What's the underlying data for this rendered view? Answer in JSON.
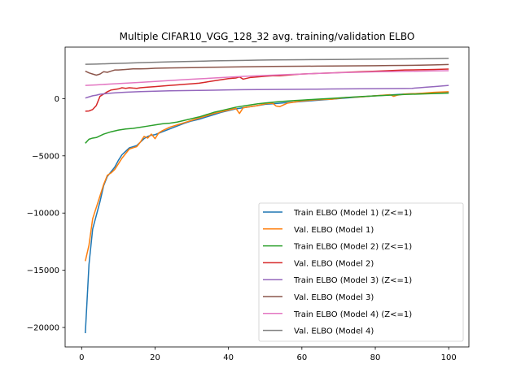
{
  "chart_data": {
    "type": "line",
    "title": "Multiple CIFAR10_VGG_128_32 avg. training/validation ELBO",
    "xlabel": "",
    "ylabel": "",
    "xlim": [
      -4.5,
      105.5
    ],
    "ylim": [
      -21700,
      4500
    ],
    "xticks": [
      0,
      20,
      40,
      60,
      80,
      100
    ],
    "yticks": [
      -20000,
      -15000,
      -10000,
      -5000,
      0
    ],
    "grid": false,
    "legend_position": "lower right",
    "series": [
      {
        "name": "Train ELBO (Model 1) (Z<=1)",
        "color": "#1f77b4",
        "points": [
          [
            1,
            -20500
          ],
          [
            2,
            -14500
          ],
          [
            3,
            -11400
          ],
          [
            4,
            -10200
          ],
          [
            5,
            -9000
          ],
          [
            6,
            -7600
          ],
          [
            7,
            -6800
          ],
          [
            8,
            -6400
          ],
          [
            9,
            -6000
          ],
          [
            10,
            -5400
          ],
          [
            11,
            -4900
          ],
          [
            12,
            -4600
          ],
          [
            13,
            -4300
          ],
          [
            14,
            -4200
          ],
          [
            15,
            -4100
          ],
          [
            16,
            -3800
          ],
          [
            17,
            -3500
          ],
          [
            18,
            -3300
          ],
          [
            19,
            -3200
          ],
          [
            20,
            -3150
          ],
          [
            22,
            -2900
          ],
          [
            24,
            -2650
          ],
          [
            26,
            -2400
          ],
          [
            28,
            -2150
          ],
          [
            30,
            -1950
          ],
          [
            32,
            -1800
          ],
          [
            34,
            -1600
          ],
          [
            36,
            -1400
          ],
          [
            38,
            -1200
          ],
          [
            40,
            -1050
          ],
          [
            42,
            -900
          ],
          [
            44,
            -800
          ],
          [
            46,
            -700
          ],
          [
            48,
            -600
          ],
          [
            50,
            -500
          ],
          [
            52,
            -450
          ],
          [
            54,
            -400
          ],
          [
            56,
            -350
          ],
          [
            58,
            -300
          ],
          [
            60,
            -250
          ],
          [
            64,
            -150
          ],
          [
            68,
            -50
          ],
          [
            72,
            50
          ],
          [
            76,
            150
          ],
          [
            80,
            250
          ],
          [
            84,
            320
          ],
          [
            88,
            400
          ],
          [
            92,
            450
          ],
          [
            96,
            500
          ],
          [
            100,
            550
          ]
        ]
      },
      {
        "name": "Val. ELBO (Model 1)",
        "color": "#ff7f0e",
        "points": [
          [
            1,
            -14200
          ],
          [
            2,
            -12800
          ],
          [
            3,
            -10500
          ],
          [
            4,
            -9500
          ],
          [
            5,
            -8500
          ],
          [
            6,
            -7500
          ],
          [
            7,
            -6700
          ],
          [
            8,
            -6500
          ],
          [
            9,
            -6200
          ],
          [
            10,
            -5700
          ],
          [
            11,
            -5200
          ],
          [
            12,
            -4800
          ],
          [
            13,
            -4400
          ],
          [
            14,
            -4300
          ],
          [
            15,
            -4200
          ],
          [
            16,
            -3800
          ],
          [
            17,
            -3300
          ],
          [
            18,
            -3450
          ],
          [
            19,
            -3100
          ],
          [
            20,
            -3500
          ],
          [
            21,
            -3000
          ],
          [
            22,
            -2800
          ],
          [
            24,
            -2500
          ],
          [
            26,
            -2300
          ],
          [
            28,
            -2100
          ],
          [
            30,
            -1900
          ],
          [
            32,
            -1700
          ],
          [
            34,
            -1500
          ],
          [
            36,
            -1300
          ],
          [
            38,
            -1150
          ],
          [
            40,
            -1000
          ],
          [
            42,
            -850
          ],
          [
            43,
            -1300
          ],
          [
            44,
            -800
          ],
          [
            46,
            -700
          ],
          [
            48,
            -600
          ],
          [
            50,
            -450
          ],
          [
            52,
            -400
          ],
          [
            53,
            -650
          ],
          [
            54,
            -700
          ],
          [
            56,
            -400
          ],
          [
            58,
            -300
          ],
          [
            60,
            -200
          ],
          [
            64,
            -100
          ],
          [
            68,
            -50
          ],
          [
            72,
            100
          ],
          [
            76,
            150
          ],
          [
            80,
            250
          ],
          [
            84,
            350
          ],
          [
            85,
            200
          ],
          [
            86,
            300
          ],
          [
            88,
            400
          ],
          [
            92,
            450
          ],
          [
            96,
            550
          ],
          [
            100,
            600
          ]
        ]
      },
      {
        "name": "Train ELBO (Model 2) (Z<=1)",
        "color": "#2ca02c",
        "points": [
          [
            1,
            -3900
          ],
          [
            2,
            -3550
          ],
          [
            3,
            -3450
          ],
          [
            4,
            -3400
          ],
          [
            5,
            -3250
          ],
          [
            6,
            -3100
          ],
          [
            8,
            -2900
          ],
          [
            10,
            -2750
          ],
          [
            12,
            -2650
          ],
          [
            14,
            -2600
          ],
          [
            16,
            -2500
          ],
          [
            18,
            -2400
          ],
          [
            20,
            -2300
          ],
          [
            22,
            -2200
          ],
          [
            24,
            -2150
          ],
          [
            26,
            -2050
          ],
          [
            28,
            -1900
          ],
          [
            30,
            -1750
          ],
          [
            32,
            -1600
          ],
          [
            34,
            -1400
          ],
          [
            36,
            -1200
          ],
          [
            38,
            -1050
          ],
          [
            40,
            -900
          ],
          [
            42,
            -750
          ],
          [
            44,
            -650
          ],
          [
            46,
            -550
          ],
          [
            48,
            -450
          ],
          [
            50,
            -380
          ],
          [
            52,
            -320
          ],
          [
            54,
            -260
          ],
          [
            56,
            -210
          ],
          [
            58,
            -170
          ],
          [
            60,
            -130
          ],
          [
            64,
            -50
          ],
          [
            68,
            20
          ],
          [
            72,
            100
          ],
          [
            76,
            180
          ],
          [
            80,
            240
          ],
          [
            84,
            300
          ],
          [
            88,
            360
          ],
          [
            92,
            400
          ],
          [
            96,
            440
          ],
          [
            100,
            480
          ]
        ]
      },
      {
        "name": "Val. ELBO (Model 2)",
        "color": "#d62728",
        "points": [
          [
            1,
            -1100
          ],
          [
            2,
            -1080
          ],
          [
            3,
            -950
          ],
          [
            4,
            -600
          ],
          [
            5,
            200
          ],
          [
            6,
            400
          ],
          [
            7,
            600
          ],
          [
            8,
            750
          ],
          [
            9,
            800
          ],
          [
            10,
            850
          ],
          [
            11,
            950
          ],
          [
            12,
            900
          ],
          [
            13,
            950
          ],
          [
            14,
            920
          ],
          [
            15,
            900
          ],
          [
            16,
            950
          ],
          [
            18,
            1000
          ],
          [
            20,
            1050
          ],
          [
            22,
            1100
          ],
          [
            24,
            1150
          ],
          [
            26,
            1200
          ],
          [
            28,
            1250
          ],
          [
            30,
            1300
          ],
          [
            32,
            1350
          ],
          [
            34,
            1450
          ],
          [
            36,
            1550
          ],
          [
            38,
            1650
          ],
          [
            40,
            1750
          ],
          [
            42,
            1800
          ],
          [
            43,
            1900
          ],
          [
            44,
            1700
          ],
          [
            46,
            1850
          ],
          [
            48,
            1900
          ],
          [
            50,
            1950
          ],
          [
            52,
            2000
          ],
          [
            54,
            2000
          ],
          [
            56,
            2050
          ],
          [
            58,
            2100
          ],
          [
            60,
            2150
          ],
          [
            64,
            2200
          ],
          [
            68,
            2250
          ],
          [
            72,
            2300
          ],
          [
            76,
            2350
          ],
          [
            80,
            2400
          ],
          [
            84,
            2450
          ],
          [
            88,
            2500
          ],
          [
            92,
            2520
          ],
          [
            96,
            2550
          ],
          [
            100,
            2580
          ]
        ]
      },
      {
        "name": "Train ELBO (Model 3) (Z<=1)",
        "color": "#9467bd",
        "points": [
          [
            1,
            50
          ],
          [
            2,
            150
          ],
          [
            3,
            250
          ],
          [
            4,
            300
          ],
          [
            5,
            380
          ],
          [
            6,
            420
          ],
          [
            8,
            480
          ],
          [
            10,
            520
          ],
          [
            12,
            560
          ],
          [
            14,
            590
          ],
          [
            16,
            610
          ],
          [
            18,
            630
          ],
          [
            20,
            650
          ],
          [
            24,
            680
          ],
          [
            28,
            700
          ],
          [
            32,
            720
          ],
          [
            36,
            740
          ],
          [
            40,
            760
          ],
          [
            44,
            780
          ],
          [
            48,
            790
          ],
          [
            52,
            800
          ],
          [
            56,
            810
          ],
          [
            60,
            820
          ],
          [
            64,
            830
          ],
          [
            68,
            840
          ],
          [
            72,
            850
          ],
          [
            76,
            860
          ],
          [
            80,
            870
          ],
          [
            84,
            880
          ],
          [
            88,
            890
          ],
          [
            90,
            900
          ],
          [
            92,
            950
          ],
          [
            94,
            1000
          ],
          [
            96,
            1050
          ],
          [
            98,
            1100
          ],
          [
            100,
            1150
          ]
        ]
      },
      {
        "name": "Val. ELBO (Model 3)",
        "color": "#8c564b",
        "points": [
          [
            1,
            2400
          ],
          [
            2,
            2250
          ],
          [
            3,
            2150
          ],
          [
            4,
            2050
          ],
          [
            5,
            2150
          ],
          [
            6,
            2350
          ],
          [
            7,
            2300
          ],
          [
            8,
            2400
          ],
          [
            9,
            2500
          ],
          [
            10,
            2500
          ],
          [
            12,
            2550
          ],
          [
            14,
            2600
          ],
          [
            16,
            2600
          ],
          [
            18,
            2620
          ],
          [
            20,
            2650
          ],
          [
            24,
            2680
          ],
          [
            28,
            2700
          ],
          [
            32,
            2720
          ],
          [
            36,
            2740
          ],
          [
            40,
            2760
          ],
          [
            44,
            2780
          ],
          [
            48,
            2800
          ],
          [
            52,
            2810
          ],
          [
            56,
            2820
          ],
          [
            60,
            2830
          ],
          [
            64,
            2840
          ],
          [
            68,
            2850
          ],
          [
            72,
            2860
          ],
          [
            76,
            2870
          ],
          [
            80,
            2880
          ],
          [
            84,
            2890
          ],
          [
            88,
            2900
          ],
          [
            92,
            2920
          ],
          [
            96,
            2950
          ],
          [
            100,
            2980
          ]
        ]
      },
      {
        "name": "Train ELBO (Model 4) (Z<=1)",
        "color": "#e377c2",
        "points": [
          [
            1,
            1150
          ],
          [
            4,
            1200
          ],
          [
            8,
            1280
          ],
          [
            12,
            1350
          ],
          [
            16,
            1420
          ],
          [
            20,
            1500
          ],
          [
            24,
            1580
          ],
          [
            28,
            1660
          ],
          [
            32,
            1730
          ],
          [
            36,
            1800
          ],
          [
            40,
            1870
          ],
          [
            44,
            1940
          ],
          [
            48,
            2000
          ],
          [
            52,
            2050
          ],
          [
            56,
            2100
          ],
          [
            60,
            2150
          ],
          [
            64,
            2200
          ],
          [
            68,
            2240
          ],
          [
            72,
            2280
          ],
          [
            76,
            2310
          ],
          [
            80,
            2340
          ],
          [
            84,
            2360
          ],
          [
            88,
            2380
          ],
          [
            92,
            2400
          ],
          [
            96,
            2420
          ],
          [
            100,
            2440
          ]
        ]
      },
      {
        "name": "Val. ELBO (Model 4)",
        "color": "#7f7f7f",
        "points": [
          [
            1,
            3000
          ],
          [
            4,
            3020
          ],
          [
            8,
            3060
          ],
          [
            12,
            3100
          ],
          [
            16,
            3140
          ],
          [
            20,
            3180
          ],
          [
            24,
            3210
          ],
          [
            28,
            3240
          ],
          [
            32,
            3270
          ],
          [
            36,
            3300
          ],
          [
            40,
            3320
          ],
          [
            44,
            3340
          ],
          [
            48,
            3360
          ],
          [
            52,
            3380
          ],
          [
            56,
            3390
          ],
          [
            60,
            3400
          ],
          [
            64,
            3410
          ],
          [
            68,
            3420
          ],
          [
            72,
            3430
          ],
          [
            76,
            3440
          ],
          [
            80,
            3450
          ],
          [
            84,
            3460
          ],
          [
            88,
            3470
          ],
          [
            92,
            3480
          ],
          [
            96,
            3500
          ],
          [
            100,
            3520
          ]
        ]
      }
    ]
  }
}
